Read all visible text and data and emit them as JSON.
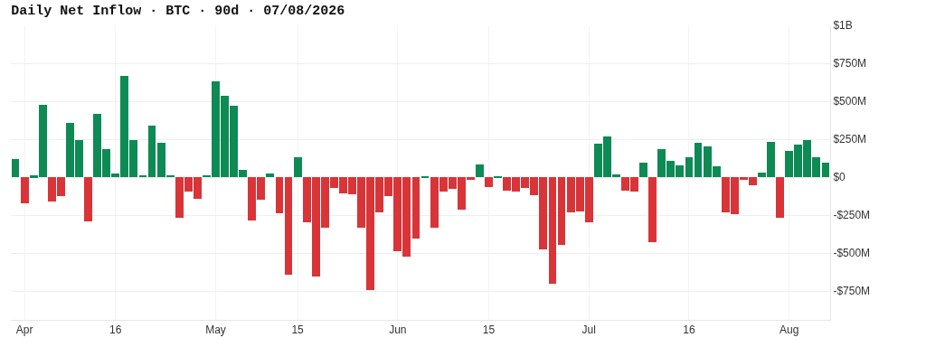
{
  "chart_data": {
    "type": "bar",
    "title": "Daily Net Inflow · BTC · 90d · 07/08/2026",
    "categories": [
      null,
      "Apr",
      null,
      null,
      null,
      null,
      null,
      null,
      null,
      null,
      null,
      "16",
      null,
      null,
      null,
      null,
      null,
      null,
      null,
      null,
      null,
      null,
      "May",
      null,
      null,
      null,
      null,
      null,
      null,
      null,
      null,
      "15",
      null,
      null,
      null,
      null,
      null,
      null,
      null,
      null,
      null,
      null,
      "Jun",
      null,
      null,
      null,
      null,
      null,
      null,
      null,
      null,
      null,
      "15",
      null,
      null,
      null,
      null,
      null,
      null,
      null,
      null,
      null,
      null,
      "Jul",
      null,
      null,
      null,
      null,
      null,
      null,
      null,
      null,
      null,
      null,
      "16",
      null,
      null,
      null,
      null,
      null,
      null,
      null,
      null,
      null,
      null,
      "Aug",
      null,
      null,
      null,
      null
    ],
    "values": [
      121000000,
      -175000000,
      10000000,
      477000000,
      -160000000,
      -125000000,
      360000000,
      242000000,
      -294000000,
      415000000,
      185000000,
      27000000,
      667000000,
      242000000,
      15000000,
      340000000,
      229000000,
      15000000,
      -265000000,
      -92000000,
      -140000000,
      15000000,
      631000000,
      533000000,
      471000000,
      48000000,
      -283000000,
      -150000000,
      27000000,
      -240000000,
      -644000000,
      133000000,
      -296000000,
      -654000000,
      -335000000,
      -73000000,
      -104000000,
      -110000000,
      -335000000,
      -742000000,
      -233000000,
      -125000000,
      -485000000,
      -523000000,
      -402000000,
      6000000,
      -331000000,
      -96000000,
      -77000000,
      -215000000,
      -19000000,
      83000000,
      -65000000,
      8000000,
      -87000000,
      -92000000,
      -69000000,
      -119000000,
      -473000000,
      -702000000,
      -448000000,
      -233000000,
      -225000000,
      -300000000,
      223000000,
      267000000,
      21000000,
      -87000000,
      -96000000,
      94000000,
      -427000000,
      183000000,
      108000000,
      79000000,
      133000000,
      227000000,
      204000000,
      71000000,
      -229000000,
      -242000000,
      -15000000,
      -52000000,
      29000000,
      235000000,
      -269000000,
      175000000,
      215000000,
      244000000,
      129000000,
      98000000
    ],
    "colors": [
      "#0e8a55",
      "#d93438",
      "#0e8a55",
      "#0e8a55",
      "#d93438",
      "#d93438",
      "#0e8a55",
      "#0e8a55",
      "#d93438",
      "#0e8a55",
      "#0e8a55",
      "#0e8a55",
      "#0e8a55",
      "#0e8a55",
      "#0e8a55",
      "#0e8a55",
      "#0e8a55",
      "#0e8a55",
      "#d93438",
      "#d93438",
      "#d93438",
      "#0e8a55",
      "#0e8a55",
      "#0e8a55",
      "#0e8a55",
      "#0e8a55",
      "#d93438",
      "#d93438",
      "#0e8a55",
      "#d93438",
      "#d93438",
      "#0e8a55",
      "#d93438",
      "#d93438",
      "#d93438",
      "#d93438",
      "#d93438",
      "#d93438",
      "#d93438",
      "#d93438",
      "#d93438",
      "#d93438",
      "#d93438",
      "#d93438",
      "#d93438",
      "#0e8a55",
      "#d93438",
      "#d93438",
      "#d93438",
      "#d93438",
      "#d93438",
      "#0e8a55",
      "#d93438",
      "#0e8a55",
      "#d93438",
      "#d93438",
      "#d93438",
      "#d93438",
      "#d93438",
      "#d93438",
      "#d93438",
      "#d93438",
      "#d93438",
      "#d93438",
      "#0e8a55",
      "#0e8a55",
      "#0e8a55",
      "#d93438",
      "#d93438",
      "#0e8a55",
      "#d93438",
      "#0e8a55",
      "#0e8a55",
      "#0e8a55",
      "#0e8a55",
      "#0e8a55",
      "#0e8a55",
      "#0e8a55",
      "#d93438",
      "#d93438",
      "#d93438",
      "#d93438",
      "#0e8a55",
      "#0e8a55",
      "#d93438",
      "#0e8a55",
      "#0e8a55",
      "#0e8a55",
      "#0e8a55",
      "#0e8a55"
    ],
    "ylim": [
      -940000000,
      1000000000
    ],
    "yticks": [
      {
        "value": 1000000000,
        "label": "$1B"
      },
      {
        "value": 750000000,
        "label": "$750M"
      },
      {
        "value": 500000000,
        "label": "$500M"
      },
      {
        "value": 250000000,
        "label": "$250M"
      },
      {
        "value": 0,
        "label": "$0"
      },
      {
        "value": -250000000,
        "label": "-$250M"
      },
      {
        "value": -500000000,
        "label": "-$500M"
      },
      {
        "value": -750000000,
        "label": "-$750M"
      }
    ],
    "grid": true
  }
}
